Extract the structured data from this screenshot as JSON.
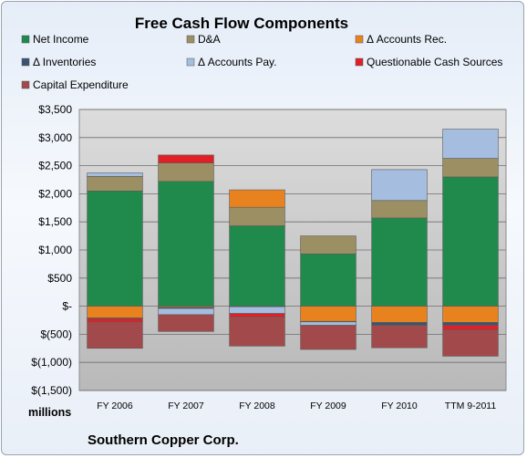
{
  "chart_data": {
    "type": "bar",
    "stacked": true,
    "title": "Free Cash Flow Components",
    "units_label": "millions",
    "company": "Southern Copper Corp.",
    "categories": [
      "FY 2006",
      "FY 2007",
      "FY 2008",
      "FY 2009",
      "FY 2010",
      "TTM 9-2011"
    ],
    "ylim": [
      -1500,
      3500
    ],
    "yticks": [
      3500,
      3000,
      2500,
      2000,
      1500,
      1000,
      500,
      0,
      -500,
      -1000,
      -1500
    ],
    "ytick_labels": [
      "$3,500",
      "$3,000",
      "$2,500",
      "$2,000",
      "$1,500",
      "$1,000",
      "$500",
      "$-",
      "$(500)",
      "$(1,000)",
      "$(1,500)"
    ],
    "grid": true,
    "legend_position": "top",
    "series": [
      {
        "name": "Net Income",
        "color": "#1f8a4c",
        "values": [
          2050,
          2220,
          1430,
          930,
          1570,
          2300
        ]
      },
      {
        "name": "D&A",
        "color": "#9c8f63",
        "values": [
          260,
          330,
          330,
          320,
          310,
          330
        ]
      },
      {
        "name": "Δ Accounts Rec.",
        "color": "#e8821f",
        "values": [
          -210,
          -20,
          310,
          -270,
          -290,
          -290
        ]
      },
      {
        "name": "Δ Inventories",
        "color": "#3a5574",
        "values": [
          -10,
          -20,
          -10,
          -10,
          -50,
          -50
        ]
      },
      {
        "name": "Δ Accounts Pay.",
        "color": "#a5bedf",
        "values": [
          60,
          -110,
          -120,
          -60,
          550,
          520
        ]
      },
      {
        "name": "Questionable Cash Sources",
        "color": "#e01f26",
        "values": [
          -60,
          140,
          -60,
          0,
          0,
          -80
        ]
      },
      {
        "name": "Capital Expenditure",
        "color": "#a24a4b",
        "values": [
          -470,
          -300,
          -520,
          -430,
          -400,
          -470
        ]
      }
    ]
  }
}
